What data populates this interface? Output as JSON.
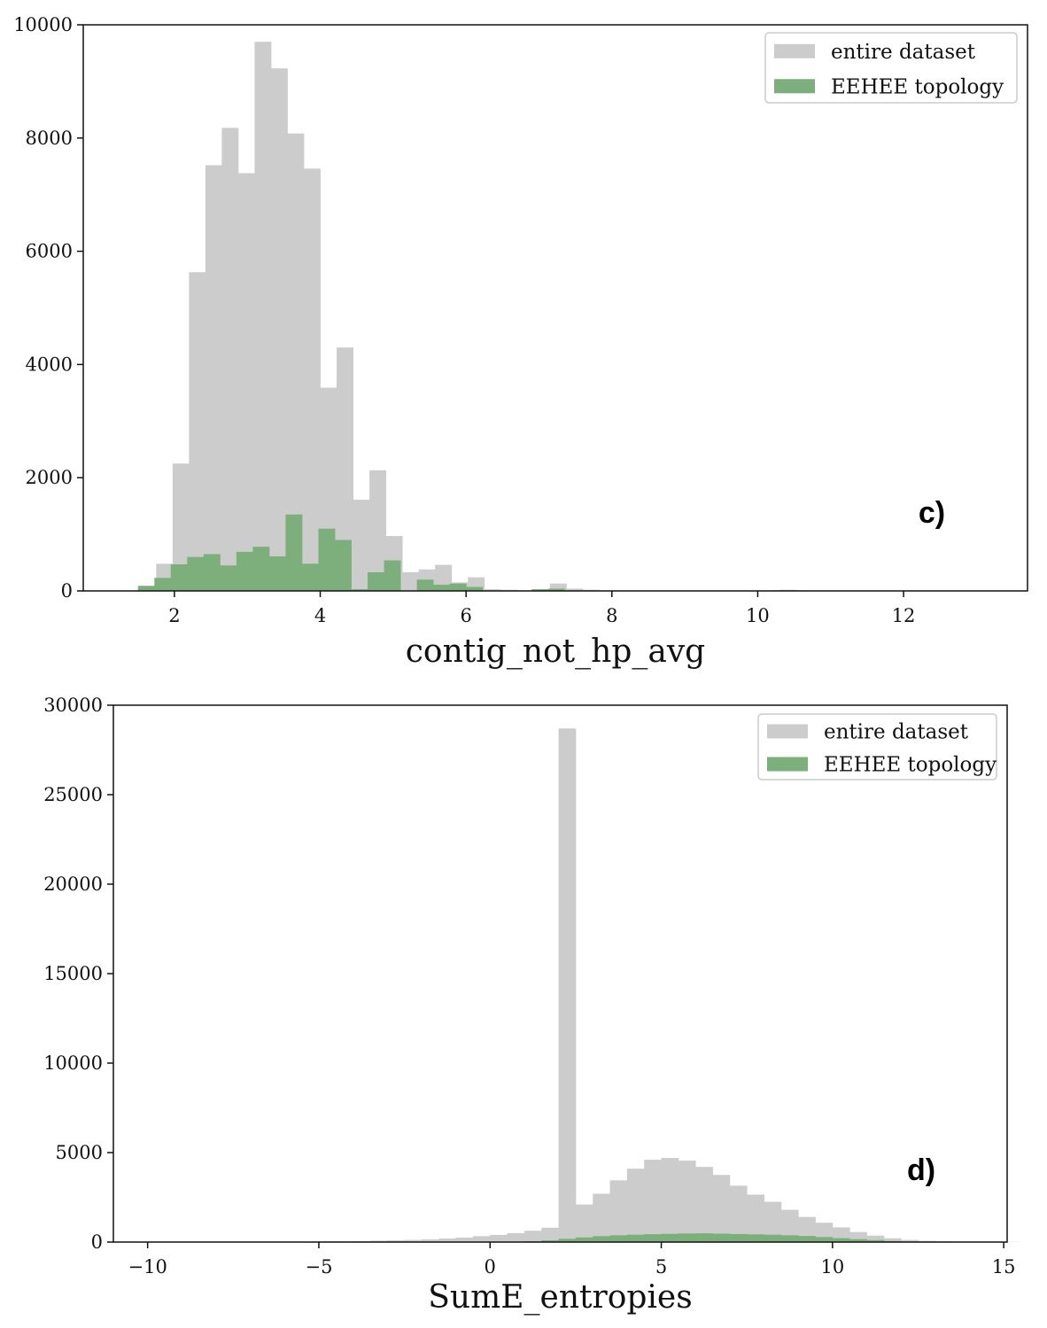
{
  "chart_data": [
    {
      "type": "histogram",
      "panel_label": "c)",
      "xlabel": "contig_not_hp_avg",
      "ylabel": "",
      "xlim": [
        0.75,
        13.7
      ],
      "ylim": [
        0,
        10000
      ],
      "xticks": [
        2,
        4,
        6,
        8,
        10,
        12
      ],
      "yticks": [
        0,
        2000,
        4000,
        6000,
        8000,
        10000
      ],
      "grid": false,
      "legend_position": "upper right",
      "bin_width": 0.225,
      "series": [
        {
          "name": "entire dataset",
          "color": "#cccccc",
          "bin_start": 1.75,
          "values": [
            480,
            2250,
            5630,
            7520,
            8180,
            7380,
            9700,
            9230,
            8080,
            7460,
            3590,
            4300,
            1610,
            2130,
            970,
            330,
            380,
            460,
            150,
            240,
            30,
            20,
            10,
            20,
            130,
            40,
            20,
            10,
            0,
            0,
            0,
            0,
            0,
            0,
            0,
            0,
            0,
            10,
            20,
            10,
            0,
            0,
            0,
            0,
            0,
            0,
            0,
            0,
            0,
            0,
            0,
            0,
            0
          ]
        },
        {
          "name": "EEHEE topology",
          "color": "#7caf7c",
          "bin_start": 1.5,
          "values": [
            90,
            230,
            470,
            600,
            650,
            450,
            690,
            780,
            610,
            1350,
            480,
            1100,
            900,
            30,
            330,
            540,
            0,
            200,
            110,
            130,
            70,
            0,
            0,
            0,
            30,
            40,
            10,
            0,
            0,
            0,
            0,
            0,
            0,
            0,
            0,
            0,
            0,
            0,
            0,
            10
          ]
        }
      ]
    },
    {
      "type": "histogram",
      "panel_label": "d)",
      "xlabel": "SumE_entropies",
      "ylabel": "",
      "xlim": [
        -11,
        15.1
      ],
      "ylim": [
        0,
        30000
      ],
      "xticks": [
        -10,
        -5,
        0,
        5,
        10,
        15
      ],
      "xtick_labels": [
        "−10",
        "−5",
        "0",
        "5",
        "10",
        "15"
      ],
      "yticks": [
        0,
        5000,
        10000,
        15000,
        20000,
        25000,
        30000
      ],
      "grid": false,
      "legend_position": "upper right",
      "bin_width": 0.5,
      "series": [
        {
          "name": "entire dataset",
          "color": "#cccccc",
          "bin_start": -10,
          "values": [
            10,
            10,
            10,
            10,
            10,
            10,
            20,
            20,
            20,
            30,
            40,
            40,
            60,
            80,
            100,
            120,
            150,
            200,
            250,
            330,
            400,
            500,
            630,
            800,
            28700,
            2100,
            2700,
            3450,
            4100,
            4600,
            4700,
            4550,
            4200,
            3750,
            3150,
            2650,
            2250,
            1800,
            1400,
            1080,
            820,
            560,
            360,
            210,
            120,
            70,
            40,
            20,
            10,
            10,
            10
          ]
        },
        {
          "name": "EEHEE topology",
          "color": "#7caf7c",
          "bin_start": 0,
          "values": [
            0,
            20,
            50,
            100,
            180,
            260,
            330,
            380,
            410,
            440,
            460,
            480,
            490,
            470,
            450,
            430,
            410,
            380,
            340,
            280,
            220,
            160,
            110,
            60,
            30,
            10
          ]
        }
      ]
    }
  ]
}
